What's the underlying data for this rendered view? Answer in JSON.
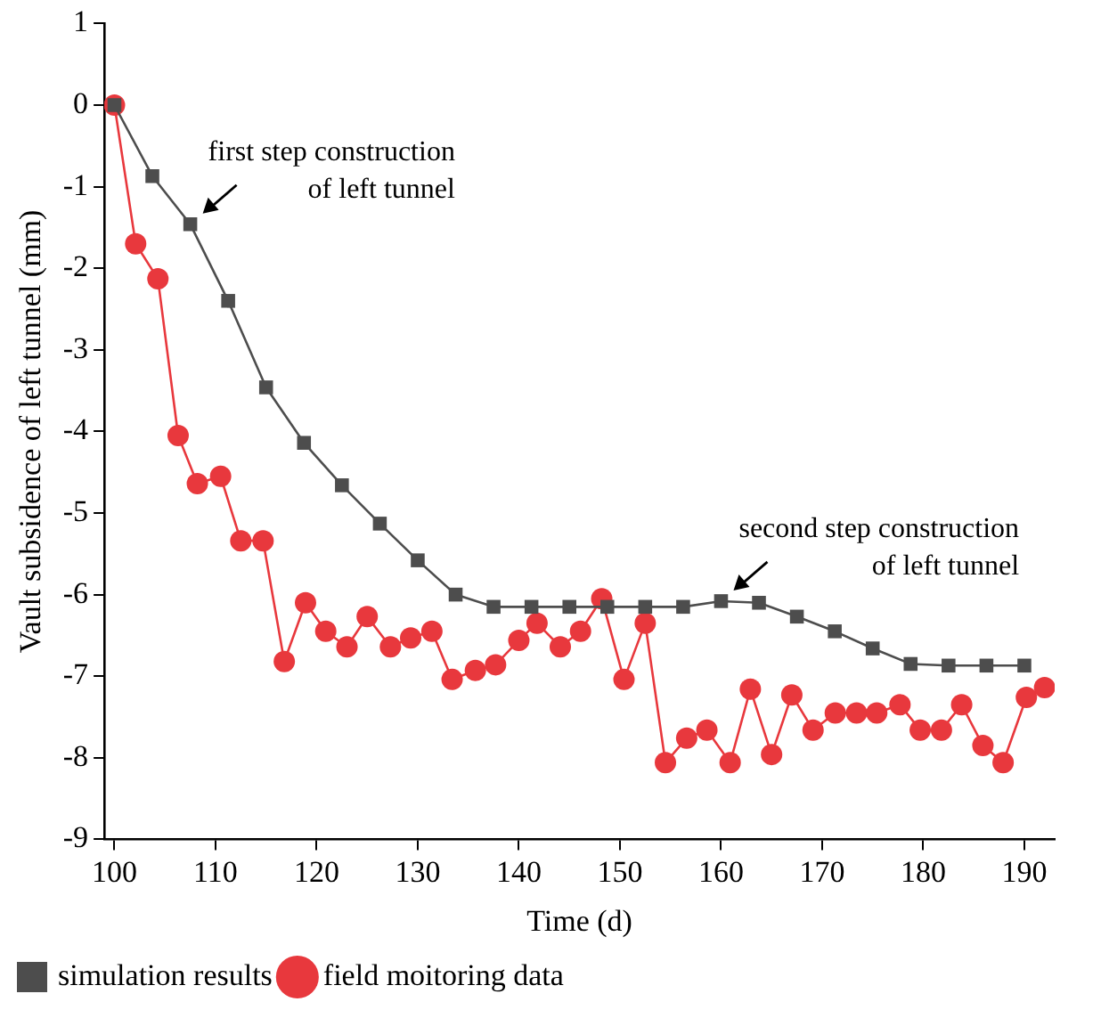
{
  "chart_data": {
    "type": "line",
    "xlabel": "Time (d)",
    "ylabel": "Vault subsidence of left tunnel (mm)",
    "xlim": [
      99,
      193
    ],
    "xticks": [
      100,
      110,
      120,
      130,
      140,
      150,
      160,
      170,
      180,
      190
    ],
    "ylim": [
      -9,
      1
    ],
    "yticks": [
      1,
      0,
      -1,
      -2,
      -3,
      -4,
      -5,
      -6,
      -7,
      -8,
      -9
    ],
    "grid": false,
    "legend": "bottom",
    "line_style": "solid",
    "series": [
      {
        "name": "simulation results",
        "color": "#4d4d4d",
        "marker": "square",
        "x": [
          100,
          103.75,
          107.5,
          111.25,
          115,
          118.75,
          122.5,
          126.25,
          130,
          133.75,
          137.5,
          141.25,
          145,
          148.75,
          152.5,
          156.25,
          160,
          163.75,
          167.5,
          171.25,
          175,
          178.75,
          182.5,
          186.25,
          190
        ],
        "values": [
          0,
          -0.87,
          -1.46,
          -2.4,
          -3.46,
          -4.14,
          -4.66,
          -5.13,
          -5.58,
          -6,
          -6.15,
          -6.15,
          -6.15,
          -6.15,
          -6.15,
          -6.15,
          -6.08,
          -6.1,
          -6.27,
          -6.45,
          -6.66,
          -6.85,
          -6.87,
          -6.87,
          -6.87
        ]
      },
      {
        "name": "field moitoring data",
        "color": "#e8383d",
        "marker": "circle",
        "x": [
          100,
          102.1,
          104.3,
          106.3,
          108.2,
          110.5,
          112.5,
          114.7,
          116.8,
          118.9,
          120.9,
          123,
          125,
          127.3,
          129.3,
          131.4,
          133.4,
          135.7,
          137.7,
          140,
          141.8,
          144.1,
          146.1,
          148.2,
          150.4,
          152.5,
          154.5,
          156.6,
          158.6,
          160.9,
          162.9,
          165,
          167,
          169.1,
          171.3,
          173.4,
          175.4,
          177.7,
          179.7,
          181.8,
          183.8,
          185.9,
          187.9,
          190.2,
          192
        ],
        "values": [
          0,
          -1.7,
          -2.13,
          -4.05,
          -4.64,
          -4.55,
          -5.34,
          -5.34,
          -6.82,
          -6.1,
          -6.45,
          -6.64,
          -6.27,
          -6.64,
          -6.53,
          -6.45,
          -7.04,
          -6.93,
          -6.86,
          -6.56,
          -6.35,
          -6.64,
          -6.45,
          -6.05,
          -7.04,
          -6.35,
          -8.06,
          -7.76,
          -7.66,
          -8.06,
          -7.16,
          -7.96,
          -7.23,
          -7.66,
          -7.45,
          -7.45,
          -7.45,
          -7.35,
          -7.66,
          -7.66,
          -7.35,
          -7.85,
          -8.06,
          -7.26,
          -7.14
        ]
      }
    ],
    "annotations": [
      {
        "text": "first step construction\nof left tunnel",
        "x": 107.5,
        "y": -1.46
      },
      {
        "text": "second step construction\nof left tunnel",
        "x": 160,
        "y": -6.08
      }
    ]
  }
}
